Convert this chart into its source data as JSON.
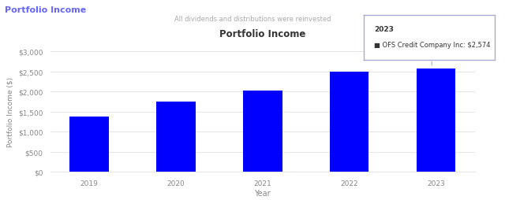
{
  "title": "Portfolio Income",
  "subtitle": "All dividends and distributions were reinvested",
  "xlabel": "Year",
  "ylabel": "Portfolio Income ($)",
  "categories": [
    "2019",
    "2020",
    "2021",
    "2022",
    "2023"
  ],
  "values": [
    1380,
    1760,
    2030,
    2490,
    2574
  ],
  "bar_color": "#0000ff",
  "ylim": [
    0,
    3000
  ],
  "yticks": [
    0,
    500,
    1000,
    1500,
    2000,
    2500,
    3000
  ],
  "ytick_labels": [
    "$0",
    "$500",
    "$1,000",
    "$1,500",
    "$2,000",
    "$2,500",
    "$3,000"
  ],
  "background_color": "#ffffff",
  "grid_color": "#e0e0e0",
  "top_left_label": "Portfolio Income",
  "top_left_color": "#6666ff",
  "tooltip_year": "2023",
  "tooltip_text": "OFS Credit Company Inc: $2,574",
  "tooltip_marker_color": "#0000ff"
}
